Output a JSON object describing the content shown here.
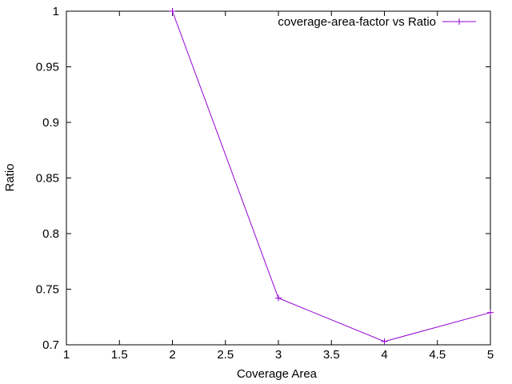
{
  "chart_data": {
    "type": "line",
    "title": "",
    "xlabel": "Coverage Area",
    "ylabel": "Ratio",
    "xlim": [
      1,
      5
    ],
    "ylim": [
      0.7,
      1
    ],
    "xticks": [
      1,
      1.5,
      2,
      2.5,
      3,
      3.5,
      4,
      4.5,
      5
    ],
    "xtick_labels": [
      "1",
      "1.5",
      "2",
      "2.5",
      "3",
      "3.5",
      "4",
      "4.5",
      "5"
    ],
    "yticks": [
      0.7,
      0.75,
      0.8,
      0.85,
      0.9,
      0.95,
      1
    ],
    "ytick_labels": [
      "0.7",
      "0.75",
      "0.8",
      "0.85",
      "0.9",
      "0.95",
      "1"
    ],
    "grid": false,
    "legend_position": "top-right",
    "series": [
      {
        "name": "coverage-area-factor vs Ratio",
        "color": "#9400d3",
        "marker": "plus",
        "x": [
          2,
          3,
          4,
          5
        ],
        "y": [
          1.0,
          0.742,
          0.703,
          0.729
        ]
      }
    ]
  }
}
